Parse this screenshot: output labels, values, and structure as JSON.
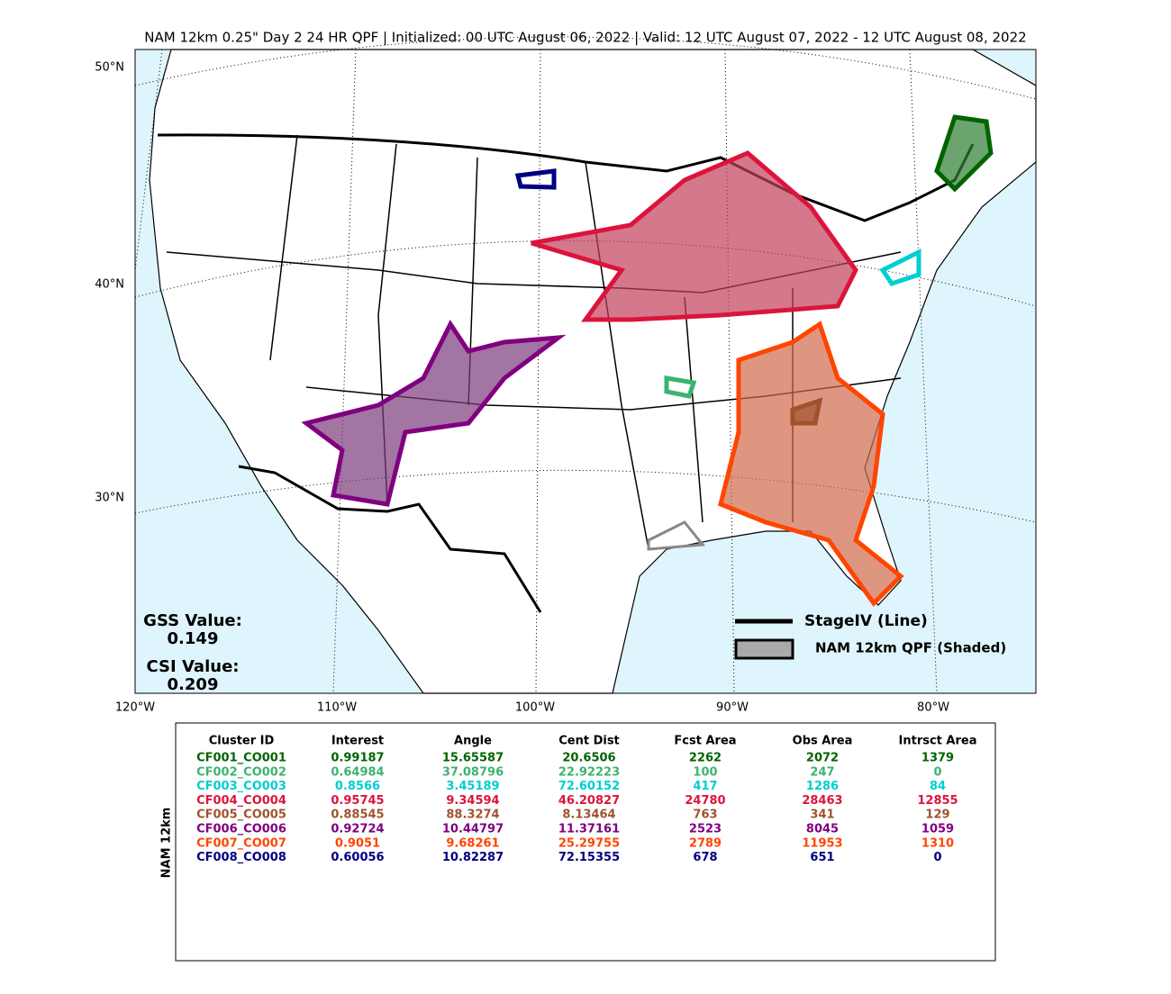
{
  "title": "NAM 12km 0.25\" Day 2 24 HR QPF | Initialized: 00 UTC August 06, 2022 | Valid: 12 UTC August 07, 2022 - 12 UTC August 08, 2022",
  "map": {
    "lat_labels": [
      "50°N",
      "40°N",
      "30°N"
    ],
    "lon_labels": [
      "120°W",
      "110°W",
      "100°W",
      "90°W",
      "80°W"
    ],
    "gss_label": "GSS Value:",
    "gss_value": "0.149",
    "csi_label": "CSI Value:",
    "csi_value": "0.209",
    "legend": [
      "StageIV (Line)",
      "NAM 12km QPF (Shaded)"
    ]
  },
  "table": {
    "side_label": "NAM 12km",
    "columns": [
      "Cluster ID",
      "Interest",
      "Angle",
      "Cent Dist",
      "Fcst Area",
      "Obs Area",
      "Intrsct Area"
    ],
    "rows": [
      {
        "color": "#006400",
        "cells": [
          "CF001_CO001",
          "0.99187",
          "15.65587",
          "20.6506",
          "2262",
          "2072",
          "1379"
        ]
      },
      {
        "color": "#3cb371",
        "cells": [
          "CF002_CO002",
          "0.64984",
          "37.08796",
          "22.92223",
          "100",
          "247",
          "0"
        ]
      },
      {
        "color": "#00ced1",
        "cells": [
          "CF003_CO003",
          "0.8566",
          "3.45189",
          "72.60152",
          "417",
          "1286",
          "84"
        ]
      },
      {
        "color": "#dc143c",
        "cells": [
          "CF004_CO004",
          "0.95745",
          "9.34594",
          "46.20827",
          "24780",
          "28463",
          "12855"
        ]
      },
      {
        "color": "#a0522d",
        "cells": [
          "CF005_CO005",
          "0.88545",
          "88.3274",
          "8.13464",
          "763",
          "341",
          "129"
        ]
      },
      {
        "color": "#800080",
        "cells": [
          "CF006_CO006",
          "0.92724",
          "10.44797",
          "11.37161",
          "2523",
          "8045",
          "1059"
        ]
      },
      {
        "color": "#ff4500",
        "cells": [
          "CF007_CO007",
          "0.9051",
          "9.68261",
          "25.29755",
          "2789",
          "11953",
          "1310"
        ]
      },
      {
        "color": "#000080",
        "cells": [
          "CF008_CO008",
          "0.60056",
          "10.82287",
          "72.15355",
          "678",
          "651",
          "0"
        ]
      }
    ]
  }
}
